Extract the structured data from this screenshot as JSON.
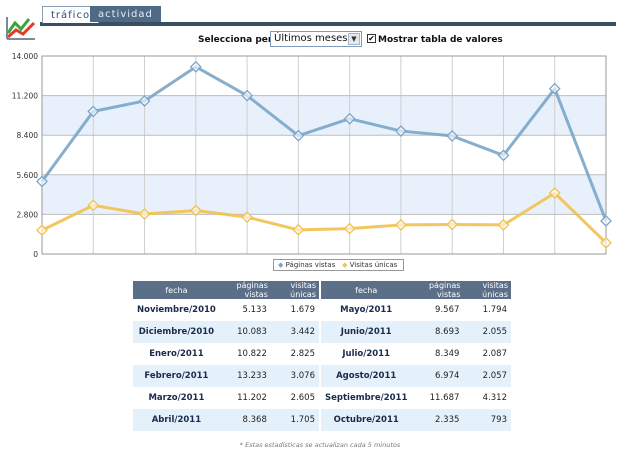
{
  "tabs": [
    {
      "label": "tráfico",
      "active": true
    },
    {
      "label": "actividad",
      "active": false
    }
  ],
  "controls": {
    "period_label": "Selecciona periodo:",
    "period_value": "Últimos meses",
    "show_table_checked": true,
    "show_table_label": "Mostrar tabla de valores"
  },
  "chart_data": {
    "type": "line",
    "categories": [
      "Noviembre/2010",
      "Diciembre/2010",
      "Enero/2011",
      "Febrero/2011",
      "Marzo/2011",
      "Abril/2011",
      "Mayo/2011",
      "Junio/2011",
      "Julio/2011",
      "Agosto/2011",
      "Septiembre/2011",
      "Octubre/2011"
    ],
    "series": [
      {
        "name": "Páginas vistas",
        "color": "#7aa5c8",
        "values": [
          5133,
          10083,
          10822,
          13233,
          11202,
          8368,
          9567,
          8693,
          8349,
          6974,
          11687,
          2335
        ]
      },
      {
        "name": "Visitas únicas",
        "color": "#f2c14e",
        "values": [
          1679,
          3442,
          2825,
          3076,
          2605,
          1705,
          1794,
          2055,
          2087,
          2057,
          4312,
          793
        ]
      }
    ],
    "y_ticks": [
      "0",
      "2.800",
      "5.600",
      "8.400",
      "11.200",
      "14.000"
    ],
    "ylim": [
      0,
      14000
    ],
    "grid": true,
    "legend_position": "bottom-center"
  },
  "table": {
    "headers": [
      "fecha",
      "páginas vistas",
      "visitas únicas"
    ],
    "left": [
      {
        "fecha": "Noviembre/2010",
        "paginas": "5.133",
        "visitas": "1.679"
      },
      {
        "fecha": "Diciembre/2010",
        "paginas": "10.083",
        "visitas": "3.442"
      },
      {
        "fecha": "Enero/2011",
        "paginas": "10.822",
        "visitas": "2.825"
      },
      {
        "fecha": "Febrero/2011",
        "paginas": "13.233",
        "visitas": "3.076"
      },
      {
        "fecha": "Marzo/2011",
        "paginas": "11.202",
        "visitas": "2.605"
      },
      {
        "fecha": "Abril/2011",
        "paginas": "8.368",
        "visitas": "1.705"
      }
    ],
    "right": [
      {
        "fecha": "Mayo/2011",
        "paginas": "9.567",
        "visitas": "1.794"
      },
      {
        "fecha": "Junio/2011",
        "paginas": "8.693",
        "visitas": "2.055"
      },
      {
        "fecha": "Julio/2011",
        "paginas": "8.349",
        "visitas": "2.087"
      },
      {
        "fecha": "Agosto/2011",
        "paginas": "6.974",
        "visitas": "2.057"
      },
      {
        "fecha": "Septiembre/2011",
        "paginas": "11.687",
        "visitas": "4.312"
      },
      {
        "fecha": "Octubre/2011",
        "paginas": "2.335",
        "visitas": "793"
      }
    ]
  },
  "footer": "* Estas estadísticas se actualizan cada 5 minutos",
  "icons": {
    "logo": "line-chart-logo-icon",
    "dropdown": "chevron-down-icon",
    "checkbox": "check-icon"
  }
}
